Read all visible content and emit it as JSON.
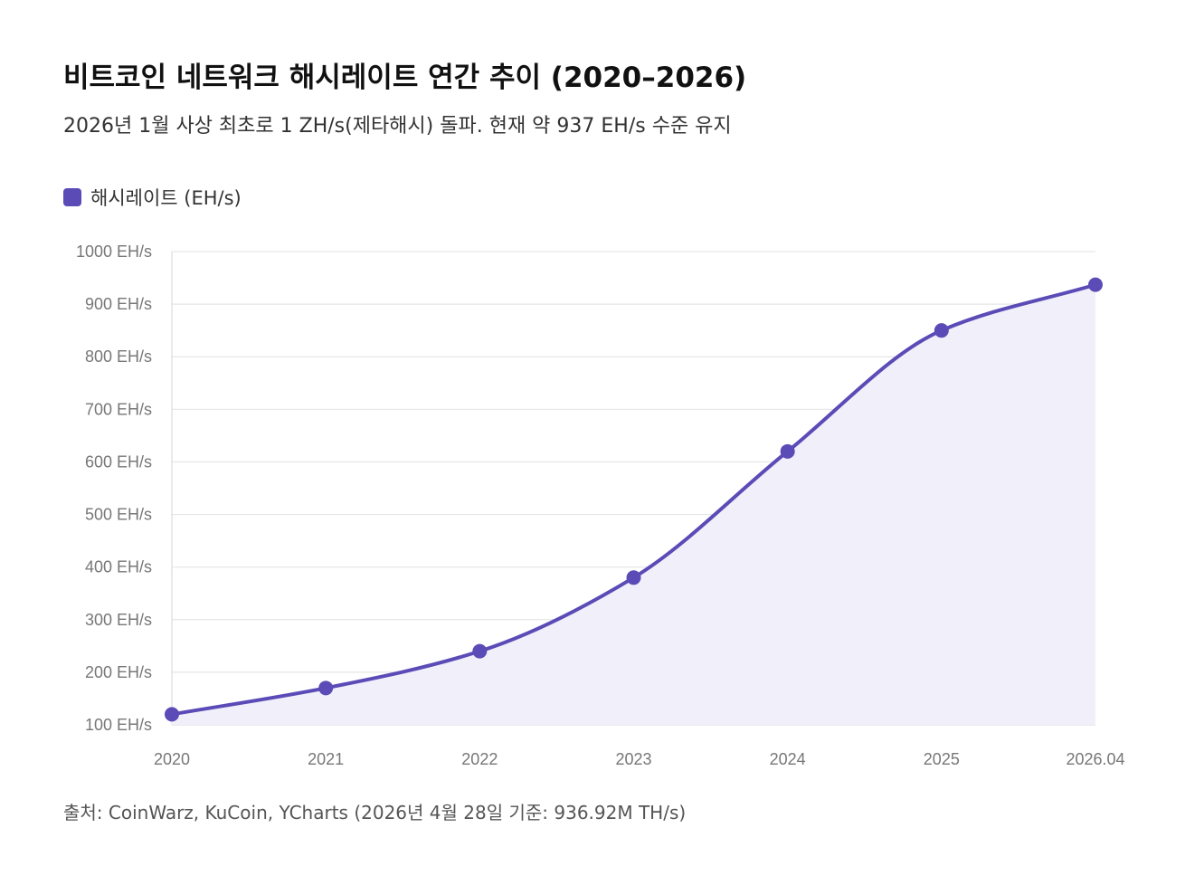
{
  "title": "비트코인 네트워크 해시레이트 연간 추이 (2020–2026)",
  "subtitle": "2026년 1월 사상 최초로 1 ZH/s(제타해시) 돌파. 현재 약 937 EH/s 수준 유지",
  "source": "출처: CoinWarz, KuCoin, YCharts (2026년 4월 28일 기준: 936.92M TH/s)",
  "colors": {
    "series": "#5b4bb7",
    "area": "#f1effa",
    "grid": "#e6e6e6",
    "axis": "#dddddd",
    "tick_text": "#777777"
  },
  "chart_data": {
    "type": "area",
    "title": "비트코인 네트워크 해시레이트 연간 추이 (2020–2026)",
    "xlabel": "",
    "ylabel": "",
    "categories": [
      "2020",
      "2021",
      "2022",
      "2023",
      "2024",
      "2025",
      "2026.04"
    ],
    "series": [
      {
        "name": "해시레이트 (EH/s)",
        "values": [
          120,
          170,
          240,
          380,
          620,
          850,
          937
        ]
      }
    ],
    "ylim": [
      100,
      1000
    ],
    "yticks": [
      100,
      200,
      300,
      400,
      500,
      600,
      700,
      800,
      900,
      1000
    ],
    "y_unit": " EH/s",
    "grid": true,
    "legend_position": "top-left",
    "smooth": true,
    "markers": true
  }
}
